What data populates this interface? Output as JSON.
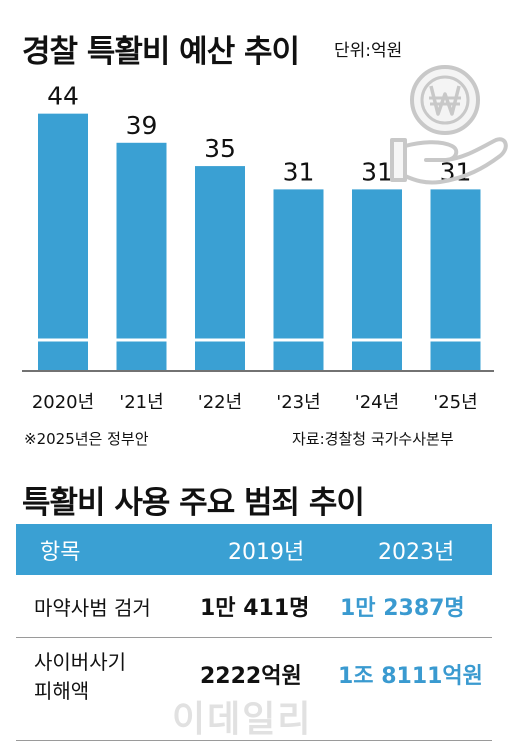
{
  "chart_data": {
    "type": "bar",
    "title": "경찰 특활비 예산 추이",
    "unit": "단위:억원",
    "categories": [
      "2020년",
      "'21년",
      "'22년",
      "'23년",
      "'24년",
      "'25년"
    ],
    "values": [
      44,
      39,
      35,
      31,
      31,
      31
    ],
    "ylim": [
      0,
      46
    ],
    "grid": false,
    "bar_color": "#3aa0d3",
    "footnote": "※2025년은 정부안",
    "source": "자료:경찰청 국가수사본부"
  },
  "table": {
    "title": "특활비 사용 주요 범죄 추이",
    "header": {
      "item": "항목",
      "col1": "2019년",
      "col2": "2023년"
    },
    "rows": [
      {
        "label_line1": "마약사범 검거",
        "label_line2": "",
        "v2019": "1만 411명",
        "v2023": "1만 2387명"
      },
      {
        "label_line1": "사이버사기",
        "label_line2": "피해액",
        "v2019": "2222억원",
        "v2023": "1조 8111억원"
      }
    ],
    "header_color": "#3aa0d3",
    "highlight_color": "#3a9ad0"
  },
  "icon": "won-coin-hand-icon",
  "watermark": "이데일리"
}
